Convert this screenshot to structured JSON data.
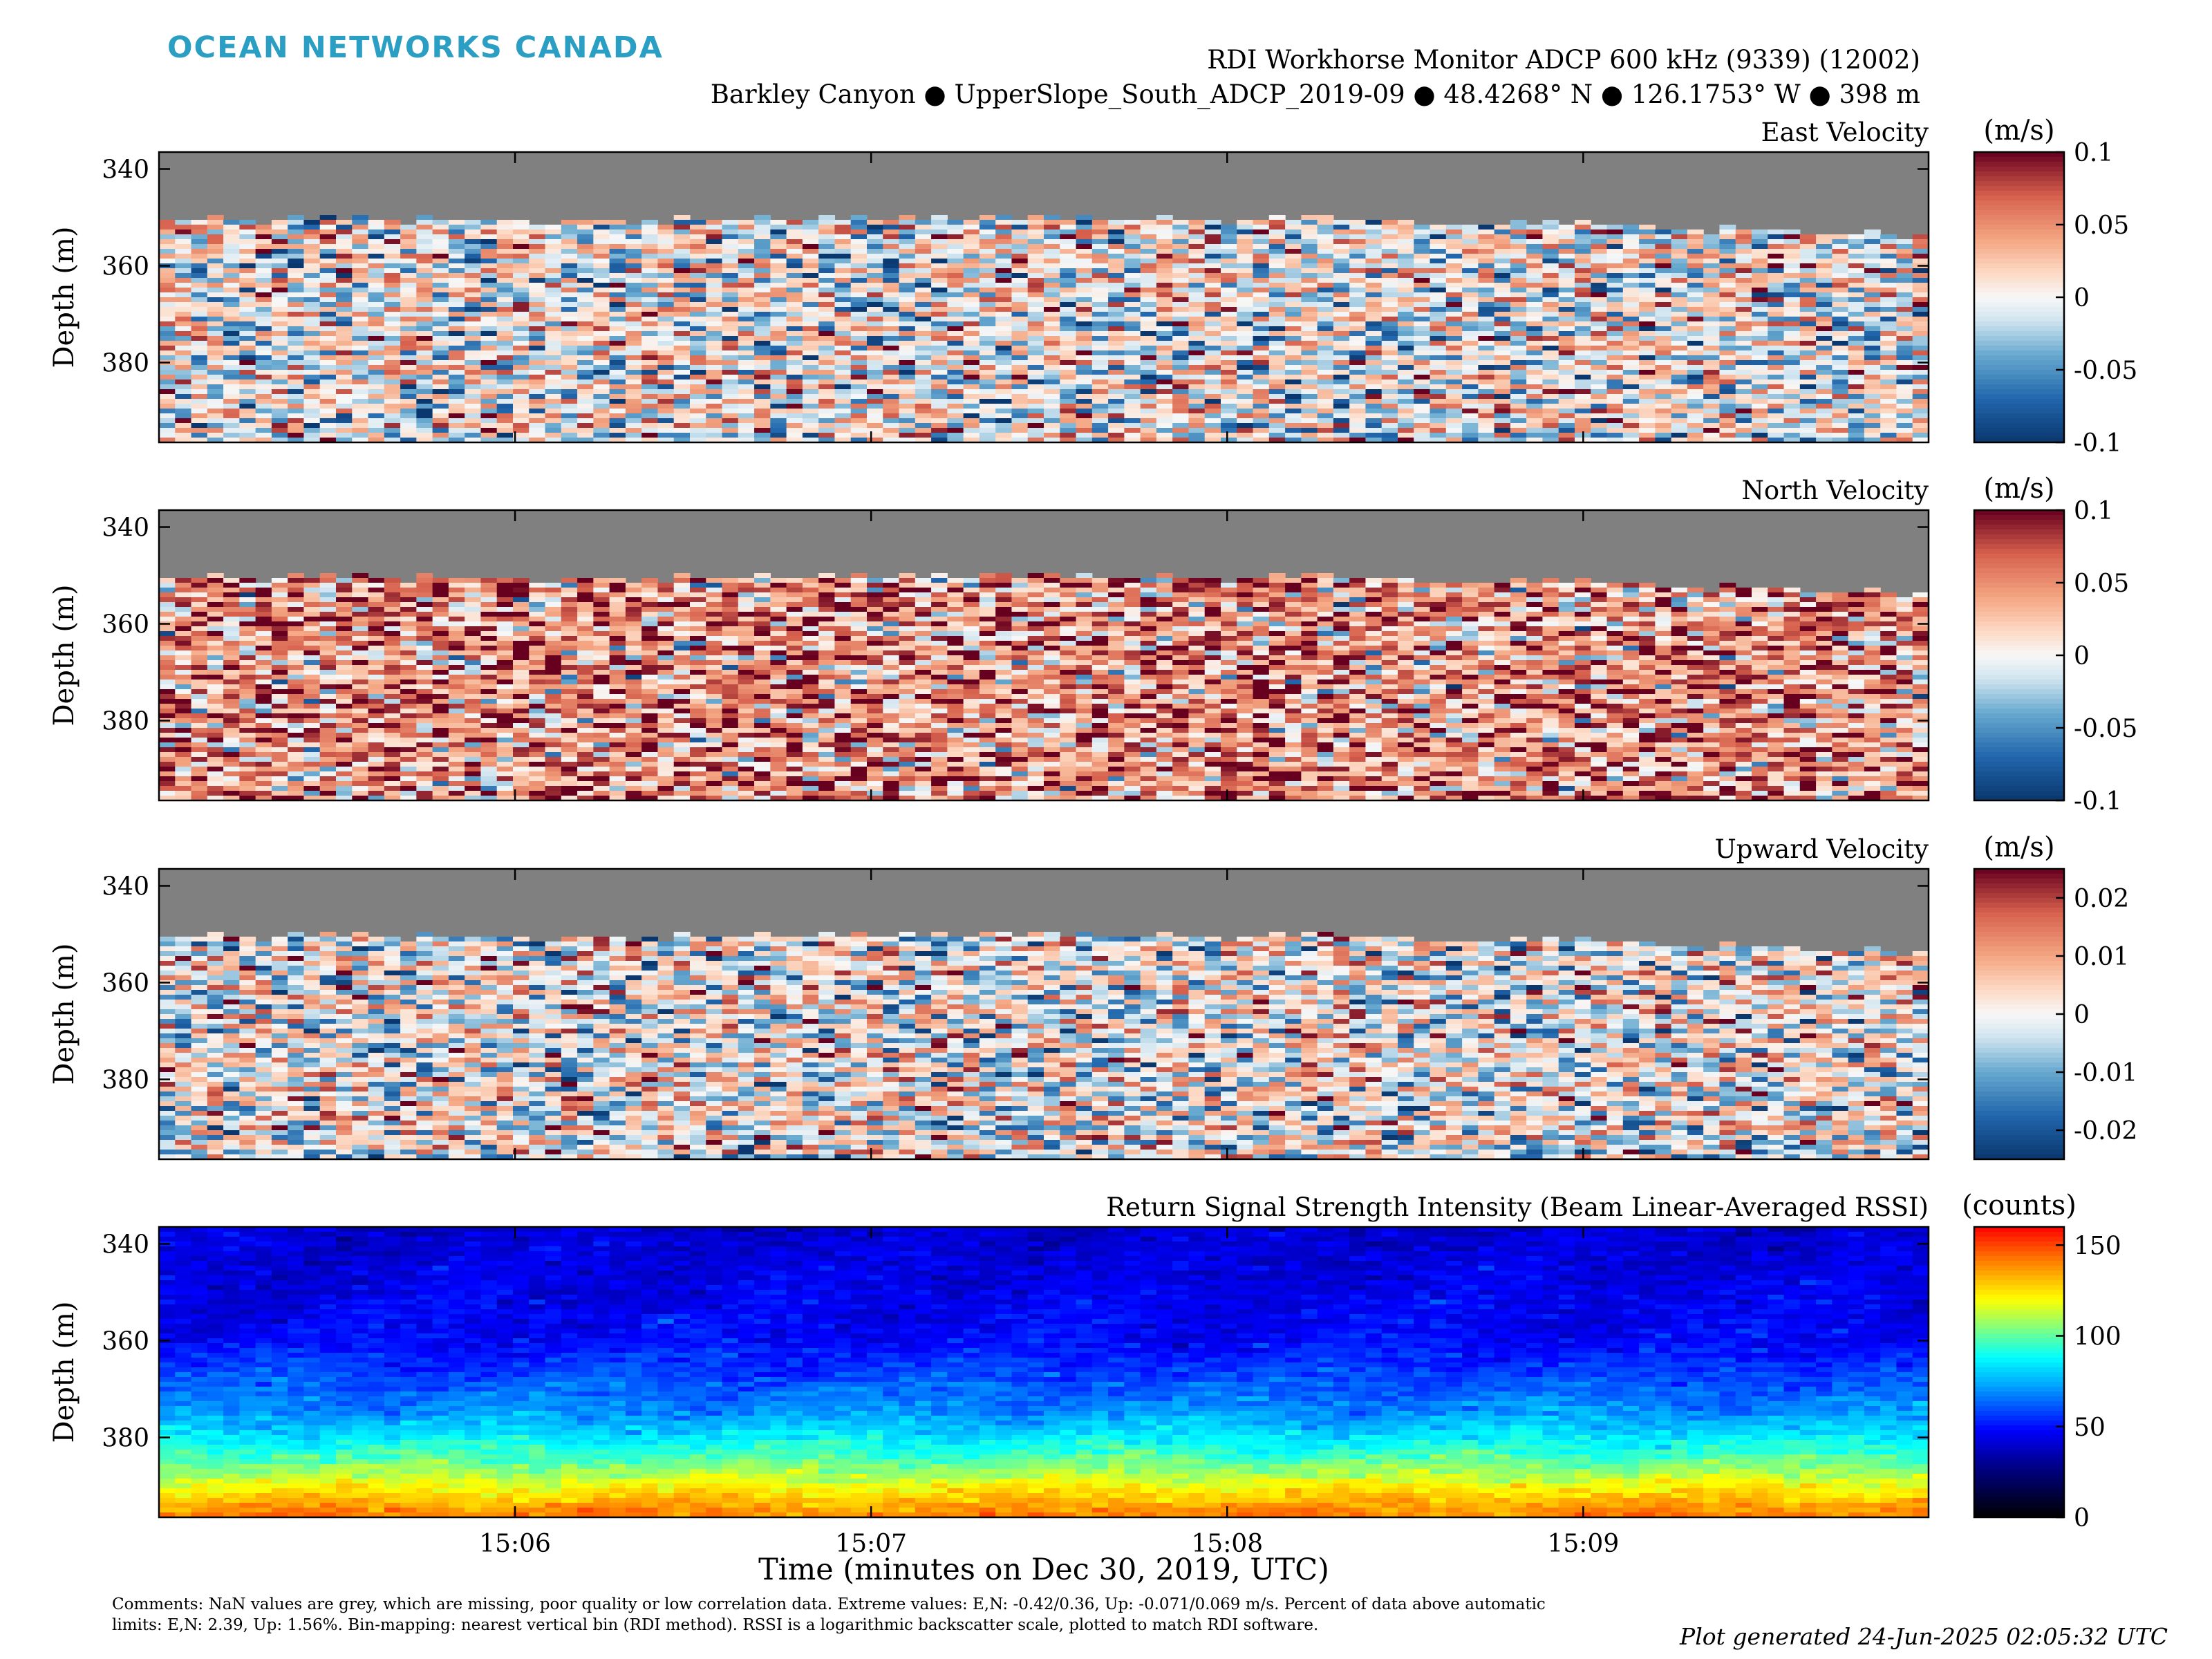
{
  "logo": "OCEAN NETWORKS CANADA",
  "header": {
    "line1": "RDI Workhorse Monitor ADCP 600 kHz (9339) (12002)",
    "line2": "Barkley Canyon ● UpperSlope_South_ADCP_2019-09 ● 48.4268° N ● 126.1753° W ● 398 m"
  },
  "footer": {
    "comments": "Comments: NaN values are grey, which are missing, poor quality or low correlation data. Extreme values: E,N: -0.42/0.36, Up: -0.071/0.069 m/s. Percent of data above automatic limits: E,N: 2.39, Up: 1.56%. Bin-mapping: nearest vertical bin (RDI method). RSSI is a logarithmic backscatter scale, plotted to match RDI software.",
    "generated": "Plot generated 24-Jun-2025 02:05:32 UTC"
  },
  "chart_data": [
    {
      "type": "heatmap",
      "title": "East Velocity",
      "ylabel": "Depth (m)",
      "y_ticks": [
        340,
        360,
        380
      ],
      "ylim": [
        336.5,
        396.5
      ],
      "x_ticks": [
        "15:06",
        "15:07",
        "15:08",
        "15:09"
      ],
      "x_tick_minutes": [
        1,
        2,
        3,
        4
      ],
      "xlim_minutes": [
        0,
        4.97
      ],
      "colorbar": {
        "label": "(m/s)",
        "colormap": "blue-white-red",
        "limits": [
          -0.1,
          0.1
        ],
        "ticks": [
          "0.1",
          "0.05",
          "0",
          "-0.05",
          "-0.1"
        ]
      },
      "nan_color": "#808080",
      "bottom_valid_depth_m": 396,
      "typical_first_valid_depth_m": 351,
      "bias_m_s": 0.0
    },
    {
      "type": "heatmap",
      "title": "North Velocity",
      "ylabel": "Depth (m)",
      "y_ticks": [
        340,
        360,
        380
      ],
      "ylim": [
        336.5,
        396.5
      ],
      "x_ticks": [
        "15:06",
        "15:07",
        "15:08",
        "15:09"
      ],
      "colorbar": {
        "label": "(m/s)",
        "colormap": "blue-white-red",
        "limits": [
          -0.1,
          0.1
        ],
        "ticks": [
          "0.1",
          "0.05",
          "0",
          "-0.05",
          "-0.1"
        ]
      },
      "nan_color": "#808080",
      "bias_m_s": 0.045
    },
    {
      "type": "heatmap",
      "title": "Upward Velocity",
      "ylabel": "Depth (m)",
      "y_ticks": [
        340,
        360,
        380
      ],
      "ylim": [
        336.5,
        396.5
      ],
      "x_ticks": [
        "15:06",
        "15:07",
        "15:08",
        "15:09"
      ],
      "colorbar": {
        "label": "(m/s)",
        "colormap": "blue-white-red",
        "limits": [
          -0.025,
          0.025
        ],
        "ticks": [
          "0.02",
          "0.01",
          "0",
          "-0.01",
          "-0.02"
        ]
      },
      "nan_color": "#808080",
      "bias_m_s": 0.0
    },
    {
      "type": "heatmap",
      "title": "Return Signal Strength Intensity (Beam Linear-Averaged RSSI)",
      "ylabel": "Depth (m)",
      "xlabel": "Time (minutes on Dec 30, 2019, UTC)",
      "y_ticks": [
        340,
        360,
        380
      ],
      "ylim": [
        336.5,
        396.5
      ],
      "x_ticks": [
        "15:06",
        "15:07",
        "15:08",
        "15:09"
      ],
      "colorbar": {
        "label": "(counts)",
        "colormap": "jet",
        "limits": [
          0,
          160
        ],
        "ticks": [
          "150",
          "100",
          "50",
          "0"
        ]
      },
      "rssi_profile_counts": {
        "depth_m": [
          337,
          360,
          375,
          385,
          390,
          394,
          396
        ],
        "counts": [
          40,
          48,
          70,
          100,
          120,
          135,
          140
        ]
      }
    }
  ]
}
